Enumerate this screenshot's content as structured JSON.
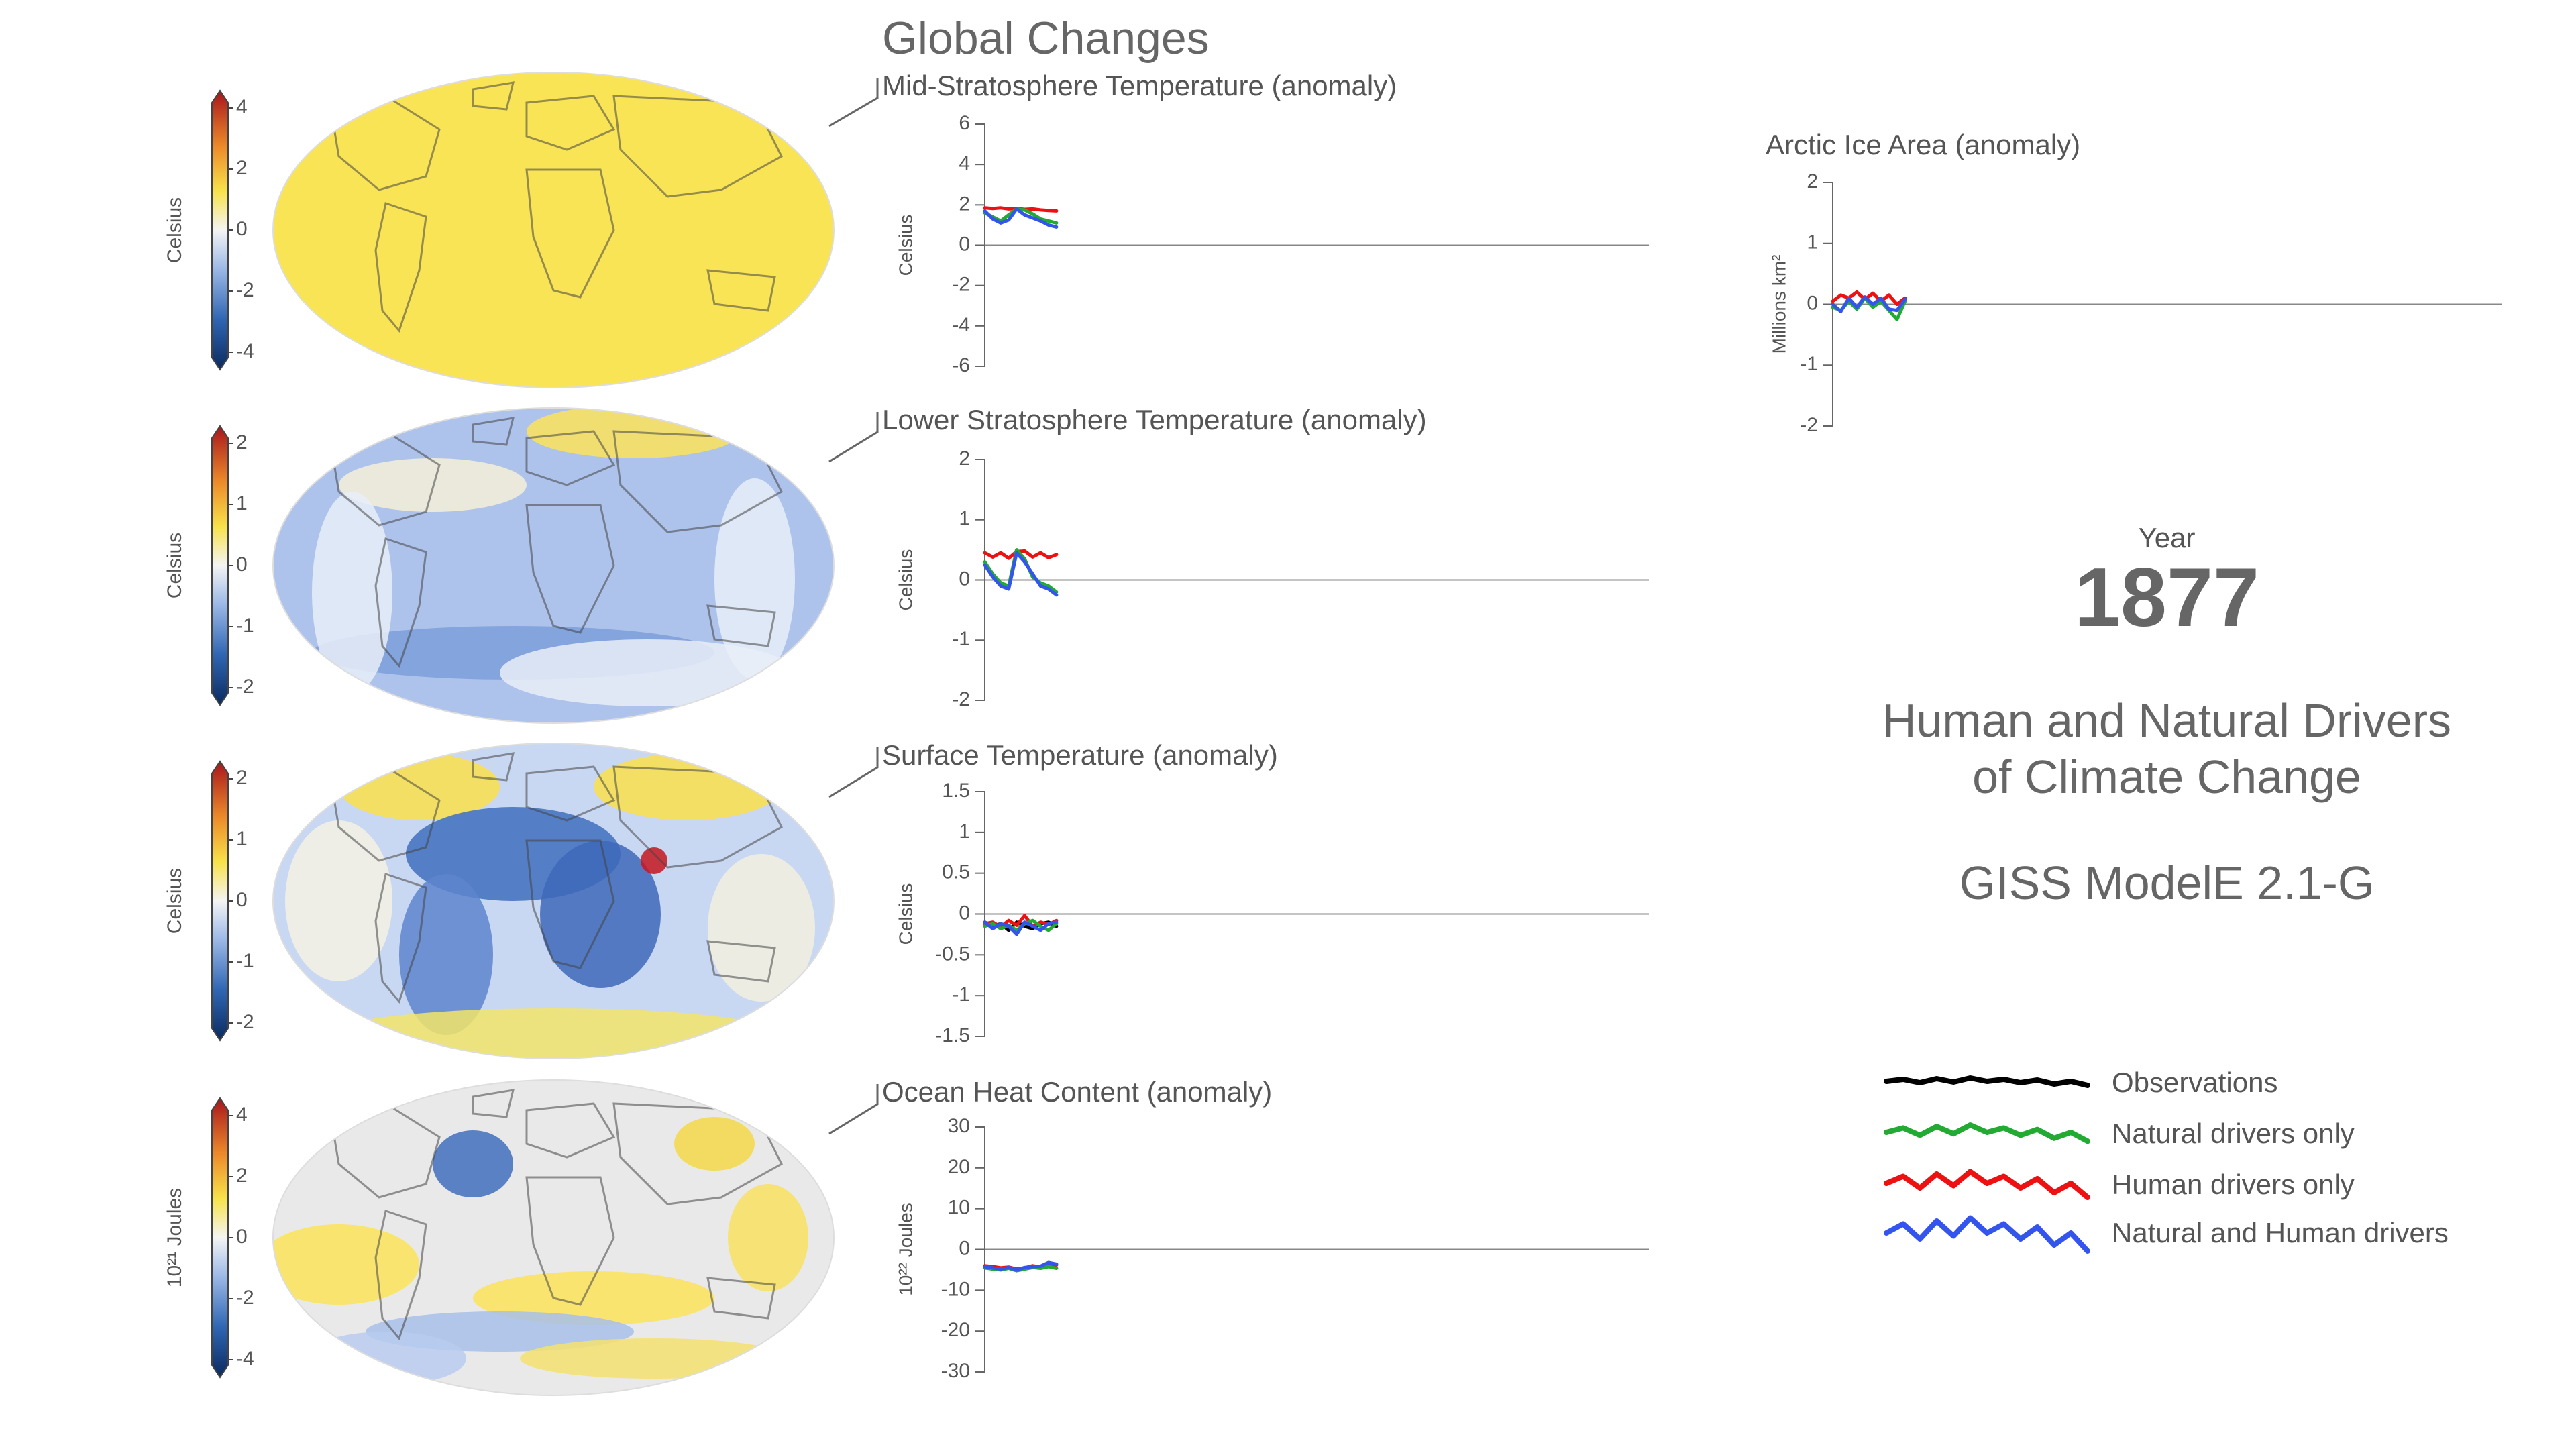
{
  "header": {
    "title": "Global Changes"
  },
  "panels": [
    {
      "title": "Mid-Stratosphere Temperature (anomaly)",
      "map_colorbar": {
        "unit": "Celsius",
        "ticks": [
          "4",
          "2",
          "0",
          "-2",
          "-4"
        ]
      },
      "chart_ylabel": "Celsius"
    },
    {
      "title": "Lower Stratosphere Temperature (anomaly)",
      "map_colorbar": {
        "unit": "Celsius",
        "ticks": [
          "2",
          "1",
          "0",
          "-1",
          "-2"
        ]
      },
      "chart_ylabel": "Celsius"
    },
    {
      "title": "Surface Temperature (anomaly)",
      "map_colorbar": {
        "unit": "Celsius",
        "ticks": [
          "2",
          "1",
          "0",
          "-1",
          "-2"
        ]
      },
      "chart_ylabel": "Celsius"
    },
    {
      "title": "Ocean Heat Content (anomaly)",
      "map_colorbar": {
        "unit": "10²¹ Joules",
        "ticks": [
          "4",
          "2",
          "0",
          "-2",
          "-4"
        ]
      },
      "chart_ylabel": "10²² Joules"
    }
  ],
  "arctic": {
    "title": "Arctic Ice Area (anomaly)",
    "ylabel": "Millions km²"
  },
  "year": {
    "label": "Year",
    "value": "1877"
  },
  "headline": {
    "line1": "Human and Natural Drivers",
    "line2": "of Climate Change",
    "model": "GISS ModelE 2.1-G"
  },
  "legend": [
    {
      "label": "Observations",
      "color": "#000000"
    },
    {
      "label": "Natural drivers only",
      "color": "#22aa33"
    },
    {
      "label": "Human drivers only",
      "color": "#ee1111"
    },
    {
      "label": "Natural and Human drivers",
      "color": "#3355ee"
    }
  ],
  "colors": {
    "human": "#ee1111",
    "natural": "#22aa33",
    "both": "#3355ee",
    "observations": "#000000",
    "axis": "#666666"
  },
  "chart_data": [
    {
      "type": "line",
      "title": "Mid-Stratosphere Temperature (anomaly)",
      "ylabel": "Celsius",
      "ylim": [
        -6,
        6
      ],
      "yticks": [
        6,
        4,
        2,
        0,
        -2,
        -4,
        -6
      ],
      "xlim": [
        1850,
        2100
      ],
      "x": [
        1850,
        1853,
        1856,
        1859,
        1862,
        1865,
        1868,
        1871,
        1874,
        1877
      ],
      "series": [
        {
          "name": "Human drivers only",
          "color": "#ee1111",
          "values": [
            1.85,
            1.82,
            1.85,
            1.8,
            1.82,
            1.78,
            1.8,
            1.75,
            1.72,
            1.7
          ]
        },
        {
          "name": "Natural drivers only",
          "color": "#22aa33",
          "values": [
            1.6,
            1.4,
            1.2,
            1.5,
            1.8,
            1.75,
            1.55,
            1.3,
            1.2,
            1.1
          ]
        },
        {
          "name": "Natural and Human drivers",
          "color": "#3355ee",
          "values": [
            1.7,
            1.3,
            1.1,
            1.25,
            1.8,
            1.5,
            1.35,
            1.2,
            1.0,
            0.9
          ]
        }
      ]
    },
    {
      "type": "line",
      "title": "Lower Stratosphere Temperature (anomaly)",
      "ylabel": "Celsius",
      "ylim": [
        -2,
        2
      ],
      "yticks": [
        2,
        1,
        0,
        -1,
        -2
      ],
      "xlim": [
        1850,
        2100
      ],
      "x": [
        1850,
        1853,
        1856,
        1859,
        1862,
        1865,
        1868,
        1871,
        1874,
        1877
      ],
      "series": [
        {
          "name": "Human drivers only",
          "color": "#ee1111",
          "values": [
            0.45,
            0.38,
            0.45,
            0.36,
            0.47,
            0.48,
            0.38,
            0.45,
            0.37,
            0.42
          ]
        },
        {
          "name": "Natural drivers only",
          "color": "#22aa33",
          "values": [
            0.3,
            0.1,
            -0.05,
            -0.1,
            0.5,
            0.35,
            0.05,
            -0.05,
            -0.1,
            -0.2
          ]
        },
        {
          "name": "Natural and Human drivers",
          "color": "#3355ee",
          "values": [
            0.25,
            0.05,
            -0.1,
            -0.15,
            0.45,
            0.3,
            0.1,
            -0.1,
            -0.15,
            -0.25
          ]
        }
      ]
    },
    {
      "type": "line",
      "title": "Surface Temperature (anomaly)",
      "ylabel": "Celsius",
      "ylim": [
        -1.5,
        1.5
      ],
      "yticks": [
        1.5,
        1,
        0.5,
        0,
        -0.5,
        -1,
        -1.5
      ],
      "xlim": [
        1850,
        2100
      ],
      "x": [
        1850,
        1853,
        1856,
        1859,
        1862,
        1865,
        1868,
        1871,
        1874,
        1877
      ],
      "series": [
        {
          "name": "Observations",
          "color": "#000000",
          "values": [
            -0.1,
            -0.15,
            -0.12,
            -0.2,
            -0.1,
            -0.15,
            -0.18,
            -0.12,
            -0.1,
            -0.15
          ]
        },
        {
          "name": "Human drivers only",
          "color": "#ee1111",
          "values": [
            -0.12,
            -0.1,
            -0.16,
            -0.08,
            -0.14,
            -0.02,
            -0.15,
            -0.1,
            -0.13,
            -0.08
          ]
        },
        {
          "name": "Natural drivers only",
          "color": "#22aa33",
          "values": [
            -0.15,
            -0.12,
            -0.18,
            -0.14,
            -0.2,
            -0.12,
            -0.08,
            -0.15,
            -0.2,
            -0.12
          ]
        },
        {
          "name": "Natural and Human drivers",
          "color": "#3355ee",
          "values": [
            -0.1,
            -0.18,
            -0.12,
            -0.15,
            -0.25,
            -0.1,
            -0.15,
            -0.2,
            -0.12,
            -0.1
          ]
        }
      ]
    },
    {
      "type": "line",
      "title": "Ocean Heat Content (anomaly)",
      "ylabel": "10²² Joules",
      "ylim": [
        -30,
        30
      ],
      "yticks": [
        30,
        20,
        10,
        0,
        -10,
        -20,
        -30
      ],
      "xlim": [
        1850,
        2100
      ],
      "x": [
        1850,
        1853,
        1856,
        1859,
        1862,
        1865,
        1868,
        1871,
        1874,
        1877
      ],
      "series": [
        {
          "name": "Human drivers only",
          "color": "#ee1111",
          "values": [
            -4,
            -4.2,
            -4.5,
            -4.3,
            -4.8,
            -4.5,
            -4,
            -4.3,
            -3.5,
            -3.8
          ]
        },
        {
          "name": "Natural drivers only",
          "color": "#22aa33",
          "values": [
            -4.5,
            -4.8,
            -5,
            -4.6,
            -5.2,
            -4.8,
            -4.4,
            -4.6,
            -4.2,
            -4.6
          ]
        },
        {
          "name": "Natural and Human drivers",
          "color": "#3355ee",
          "values": [
            -4.2,
            -4.5,
            -4.8,
            -4.4,
            -5,
            -4.4,
            -4.2,
            -4.1,
            -3.2,
            -3.6
          ]
        }
      ]
    },
    {
      "type": "line",
      "title": "Arctic Ice Area (anomaly)",
      "ylabel": "Millions km²",
      "ylim": [
        -2,
        2
      ],
      "yticks": [
        2,
        1,
        0,
        -1,
        -2
      ],
      "xlim": [
        1850,
        2100
      ],
      "x": [
        1850,
        1853,
        1856,
        1859,
        1862,
        1865,
        1868,
        1871,
        1874,
        1877
      ],
      "series": [
        {
          "name": "Human drivers only",
          "color": "#ee1111",
          "values": [
            0.05,
            0.15,
            0.1,
            0.2,
            0.08,
            0.18,
            0.05,
            0.15,
            0.0,
            0.1
          ]
        },
        {
          "name": "Natural drivers only",
          "color": "#22aa33",
          "values": [
            -0.05,
            -0.1,
            0.05,
            -0.08,
            0.1,
            -0.05,
            0.05,
            -0.1,
            -0.25,
            0.05
          ]
        },
        {
          "name": "Natural and Human drivers",
          "color": "#3355ee",
          "values": [
            0.0,
            -0.12,
            0.1,
            -0.05,
            0.12,
            0.0,
            0.1,
            -0.08,
            -0.1,
            0.08
          ]
        }
      ]
    }
  ]
}
